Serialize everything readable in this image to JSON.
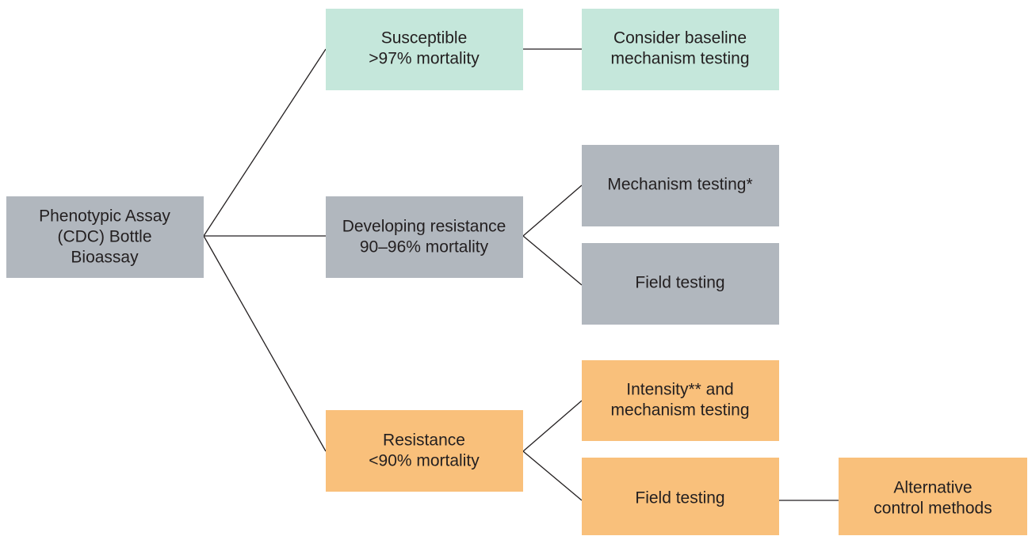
{
  "nodes": [
    {
      "lines": [
        "Phenotypic Assay",
        "(CDC) Bottle",
        "Bioassay"
      ]
    },
    {
      "lines": [
        "Susceptible",
        ">97% mortality"
      ]
    },
    {
      "lines": [
        "Consider baseline",
        "mechanism testing"
      ]
    },
    {
      "lines": [
        "Developing resistance",
        "90–96% mortality"
      ]
    },
    {
      "lines": [
        "Mechanism testing*"
      ]
    },
    {
      "lines": [
        "Field testing"
      ]
    },
    {
      "lines": [
        "Resistance",
        "<90% mortality"
      ]
    },
    {
      "lines": [
        "Intensity** and",
        "mechanism testing"
      ]
    },
    {
      "lines": [
        "Field testing"
      ]
    },
    {
      "lines": [
        "Alternative",
        "control methods"
      ]
    }
  ]
}
